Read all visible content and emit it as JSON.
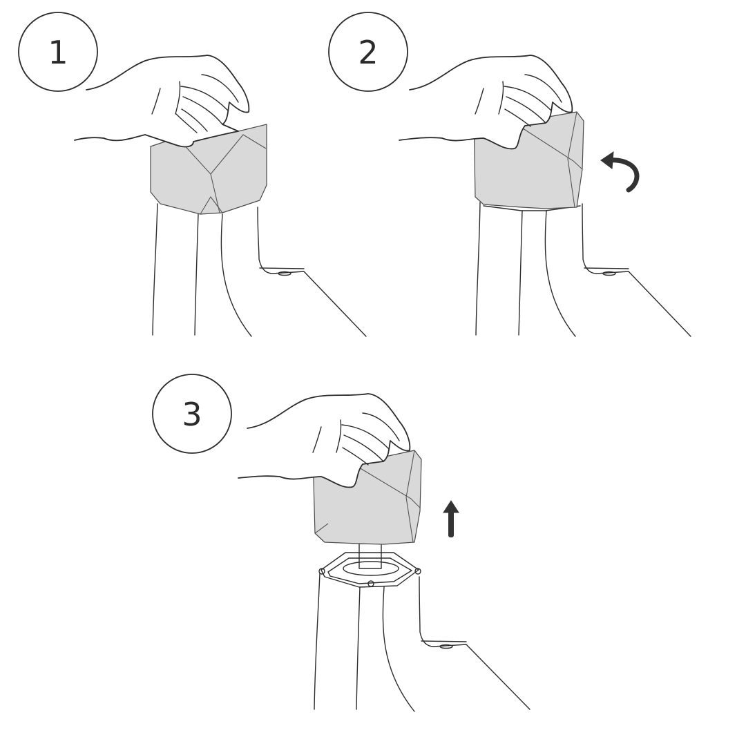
{
  "steps": [
    {
      "number": "1",
      "action": "grip"
    },
    {
      "number": "2",
      "action": "twist",
      "arrow_icon": "curved-arrow-icon"
    },
    {
      "number": "3",
      "action": "lift",
      "arrow_icon": "up-arrow-icon"
    }
  ],
  "colors": {
    "line": "#2b2b2b",
    "cap": "#d9d9d9",
    "arrow": "#333333"
  }
}
